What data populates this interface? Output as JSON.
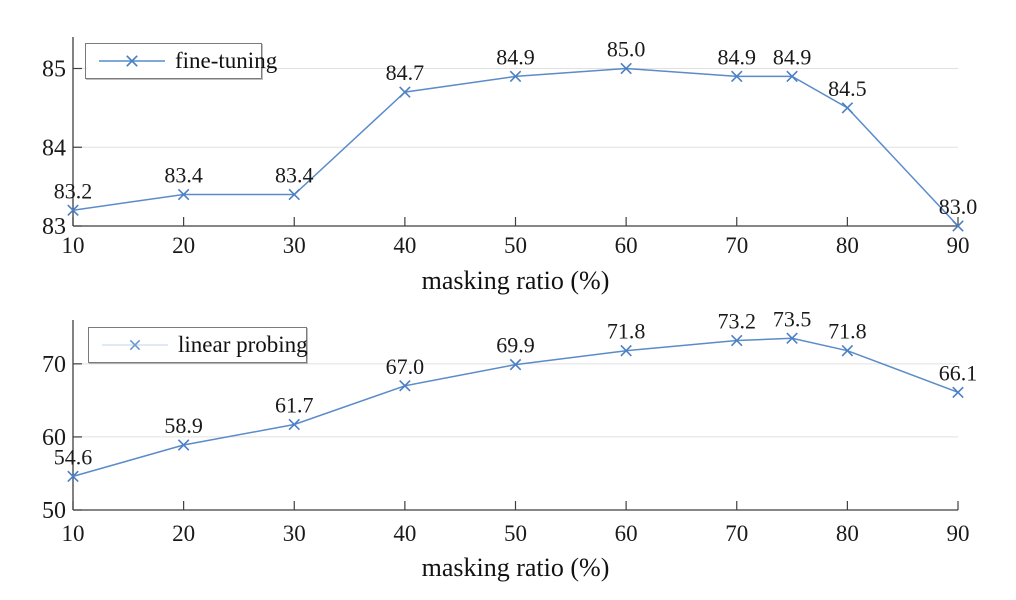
{
  "figure": {
    "background": "#ffffff"
  },
  "style": {
    "axis_color": "#3f3f3f",
    "grid_color": "#e0e0e0",
    "text_color": "#1a1a1a"
  },
  "chart_data": [
    {
      "type": "line",
      "legend": "fine-tuning",
      "legend_position": "top-left",
      "xlabel": "masking ratio (%)",
      "ylabel": "",
      "x": [
        10,
        20,
        30,
        40,
        50,
        60,
        70,
        75,
        80,
        90
      ],
      "values": [
        83.2,
        83.4,
        83.4,
        84.7,
        84.9,
        85.0,
        84.9,
        84.9,
        84.5,
        83.0
      ],
      "point_labels": [
        "83.2",
        "83.4",
        "83.4",
        "84.7",
        "84.9",
        "85.0",
        "84.9",
        "84.9",
        "84.5",
        "83.0"
      ],
      "xlim": [
        10,
        90
      ],
      "ylim": [
        83,
        85.4
      ],
      "xticks": [
        10,
        20,
        30,
        40,
        50,
        60,
        70,
        80,
        90
      ],
      "yticks": [
        83,
        84,
        85
      ],
      "grid": "horizontal",
      "marker": "x",
      "line_color": "#5b8bc9",
      "marker_color": "#4c80c4",
      "legend_line_faint": false
    },
    {
      "type": "line",
      "legend": "linear probing",
      "legend_position": "top-left",
      "xlabel": "masking ratio (%)",
      "ylabel": "",
      "x": [
        10,
        20,
        30,
        40,
        50,
        60,
        70,
        75,
        80,
        90
      ],
      "values": [
        54.6,
        58.9,
        61.7,
        67.0,
        69.9,
        71.8,
        73.2,
        73.5,
        71.8,
        66.1
      ],
      "point_labels": [
        "54.6",
        "58.9",
        "61.7",
        "67.0",
        "69.9",
        "71.8",
        "73.2",
        "73.5",
        "71.8",
        "66.1"
      ],
      "xlim": [
        10,
        90
      ],
      "ylim": [
        50,
        76
      ],
      "xticks": [
        10,
        20,
        30,
        40,
        50,
        60,
        70,
        80,
        90
      ],
      "yticks": [
        50,
        60,
        70
      ],
      "grid": "horizontal",
      "marker": "x",
      "line_color": "#5b8bc9",
      "marker_color": "#4c80c4",
      "legend_line_faint": true
    }
  ]
}
